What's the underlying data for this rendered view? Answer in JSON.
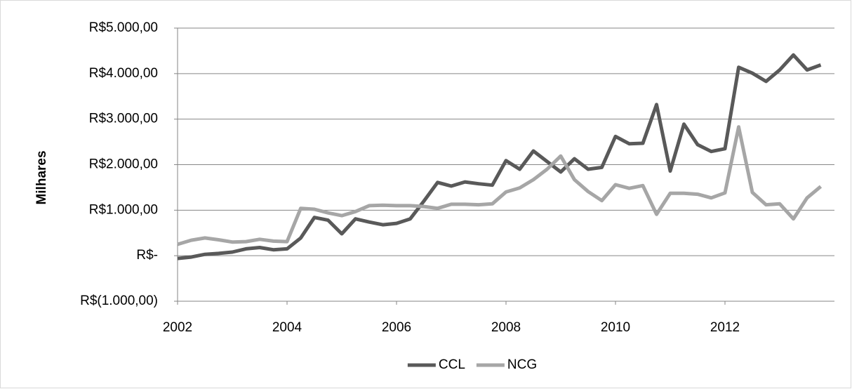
{
  "chart_data": {
    "type": "line",
    "y_label": "Milhares",
    "x": [
      2002,
      2002.25,
      2002.5,
      2002.75,
      2003,
      2003.25,
      2003.5,
      2003.75,
      2004,
      2004.25,
      2004.5,
      2004.75,
      2005,
      2005.25,
      2005.5,
      2005.75,
      2006,
      2006.25,
      2006.5,
      2006.75,
      2007,
      2007.25,
      2007.5,
      2007.75,
      2008,
      2008.25,
      2008.5,
      2008.75,
      2009,
      2009.25,
      2009.5,
      2009.75,
      2010,
      2010.25,
      2010.5,
      2010.75,
      2011,
      2011.25,
      2011.5,
      2011.75,
      2012,
      2012.25,
      2012.5,
      2012.75,
      2013,
      2013.25,
      2013.5,
      2013.75
    ],
    "series": [
      {
        "name": "CCL",
        "color": "#595959",
        "values": [
          -60,
          -30,
          30,
          50,
          80,
          150,
          180,
          130,
          150,
          390,
          840,
          780,
          480,
          810,
          740,
          680,
          710,
          810,
          1200,
          1610,
          1530,
          1620,
          1580,
          1550,
          2090,
          1900,
          2300,
          2070,
          1840,
          2130,
          1900,
          1940,
          2620,
          2460,
          2470,
          3320,
          1860,
          2890,
          2440,
          2290,
          2350,
          4140,
          4010,
          3830,
          4080,
          4410,
          4080,
          4190
        ]
      },
      {
        "name": "NCG",
        "color": "#a6a6a6",
        "values": [
          250,
          340,
          390,
          350,
          300,
          310,
          360,
          320,
          310,
          1040,
          1020,
          940,
          880,
          970,
          1100,
          1110,
          1100,
          1100,
          1080,
          1040,
          1130,
          1130,
          1120,
          1140,
          1400,
          1490,
          1670,
          1900,
          2190,
          1670,
          1410,
          1210,
          1560,
          1480,
          1540,
          910,
          1370,
          1370,
          1350,
          1270,
          1380,
          2830,
          1390,
          1120,
          1140,
          810,
          1270,
          1520
        ]
      }
    ],
    "xlim": [
      2002,
      2014
    ],
    "xticks": [
      2002,
      2004,
      2006,
      2008,
      2010,
      2012
    ],
    "ylim": [
      -1000,
      5000
    ],
    "yticks": [
      {
        "value": -1000,
        "label": "R$(1.000,00)"
      },
      {
        "value": 0,
        "label": "R$-"
      },
      {
        "value": 1000,
        "label": "R$1.000,00"
      },
      {
        "value": 2000,
        "label": "R$2.000,00"
      },
      {
        "value": 3000,
        "label": "R$3.000,00"
      },
      {
        "value": 4000,
        "label": "R$4.000,00"
      },
      {
        "value": 5000,
        "label": "R$5.000,00"
      }
    ],
    "grid": true,
    "legend": "bottom"
  }
}
